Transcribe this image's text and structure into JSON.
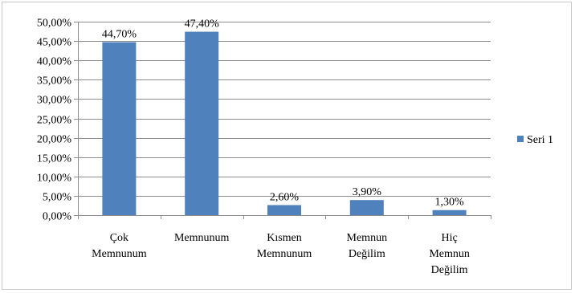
{
  "chart_data": {
    "type": "bar",
    "categories": [
      [
        "Çok",
        "Memnunum"
      ],
      [
        "Memnunum"
      ],
      [
        "Kısmen",
        "Memnunum"
      ],
      [
        "Memnun",
        "Değilim"
      ],
      [
        "Hiç",
        "Memnun",
        "Değilim"
      ]
    ],
    "series": [
      {
        "name": "Seri 1",
        "values": [
          44.7,
          47.4,
          2.6,
          3.9,
          1.3
        ],
        "data_labels": [
          "44,70%",
          "47,40%",
          "2,60%",
          "3,90%",
          "1,30%"
        ],
        "color": "#4f81bd"
      }
    ],
    "y_ticks": [
      "0,00%",
      "5,00%",
      "10,00%",
      "15,00%",
      "20,00%",
      "25,00%",
      "30,00%",
      "35,00%",
      "40,00%",
      "45,00%",
      "50,00%"
    ],
    "ylim": [
      0,
      50
    ],
    "y_step": 5,
    "grid": true,
    "legend_position": "right",
    "title": "",
    "xlabel": "",
    "ylabel": ""
  }
}
